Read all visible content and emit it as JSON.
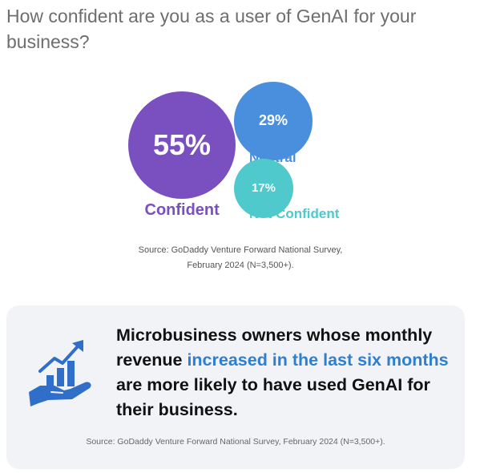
{
  "title": "How confident are you as a user of GenAI for your business?",
  "colors": {
    "confident": "#7a4fc0",
    "neutral": "#4a8fde",
    "not_confident": "#4fc9cc",
    "highlight": "#2f7fd1"
  },
  "chart_data": {
    "type": "bubble",
    "title": "How confident are you as a user of GenAI for your business?",
    "categories": [
      "Confident",
      "Neutral",
      "Not Confident"
    ],
    "values": [
      55,
      29,
      17
    ],
    "value_labels": [
      "55%",
      "29%",
      "17%"
    ],
    "unit": "%"
  },
  "source_top": "Source: GoDaddy Venture Forward National Survey, February 2024 (N=3,500+).",
  "card": {
    "icon": "hand-holding-rising-chart-icon",
    "text_before": "Microbusiness owners whose monthly revenue ",
    "text_highlight": "increased in the last six months",
    "text_after": " are more likely to have used GenAI for their business.",
    "source": "Source: GoDaddy Venture Forward National Survey, February 2024 (N=3,500+)."
  }
}
